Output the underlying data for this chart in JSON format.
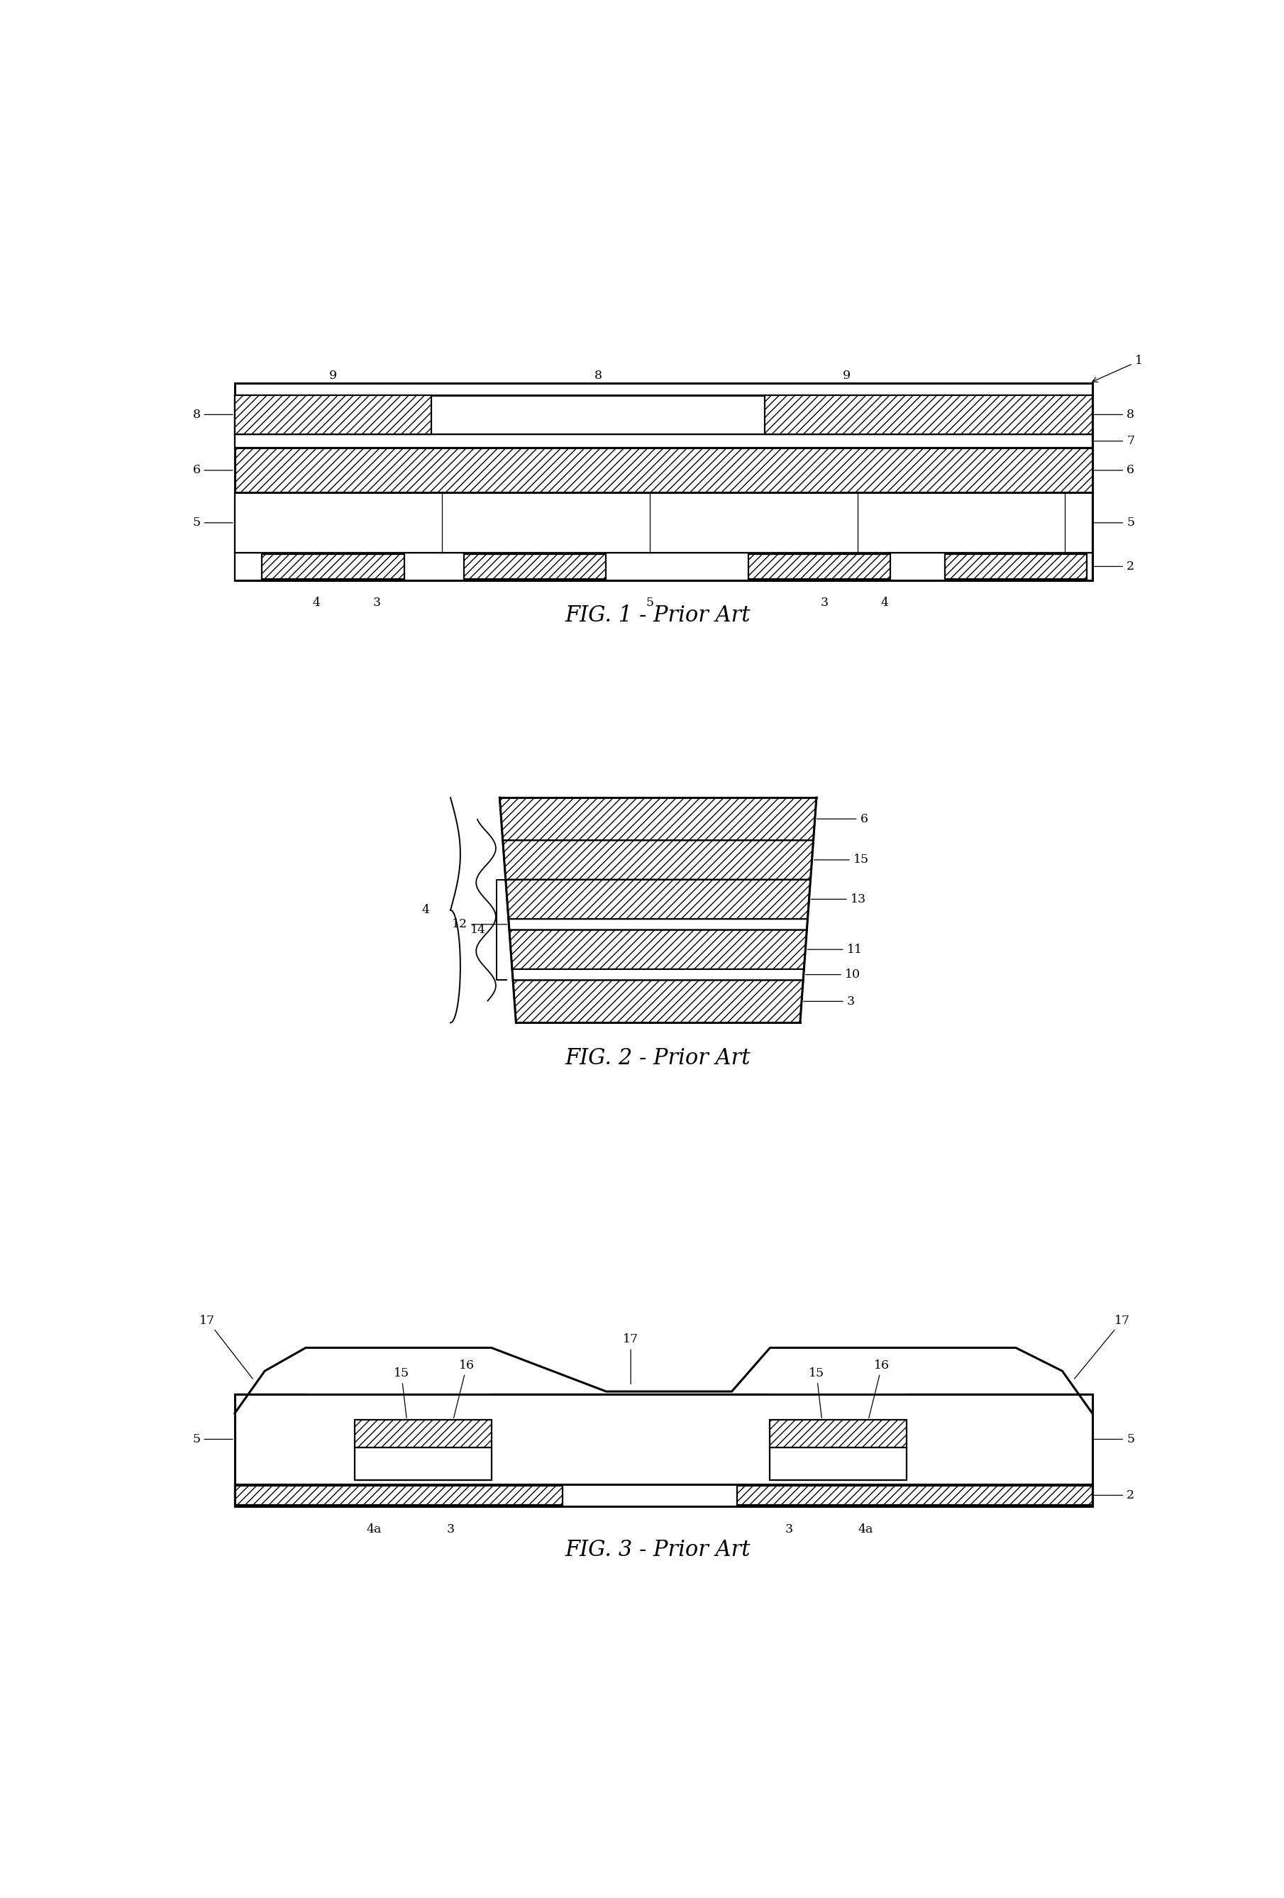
{
  "fig_width": 18.1,
  "fig_height": 26.75,
  "bg_color": "#ffffff",
  "lw": 1.6,
  "lw2": 2.2,
  "hatch": "///",
  "fig1_caption": "FIG. 1 - Prior Art",
  "fig2_caption": "FIG. 2 - Prior Art",
  "fig3_caption": "FIG. 3 - Prior Art"
}
